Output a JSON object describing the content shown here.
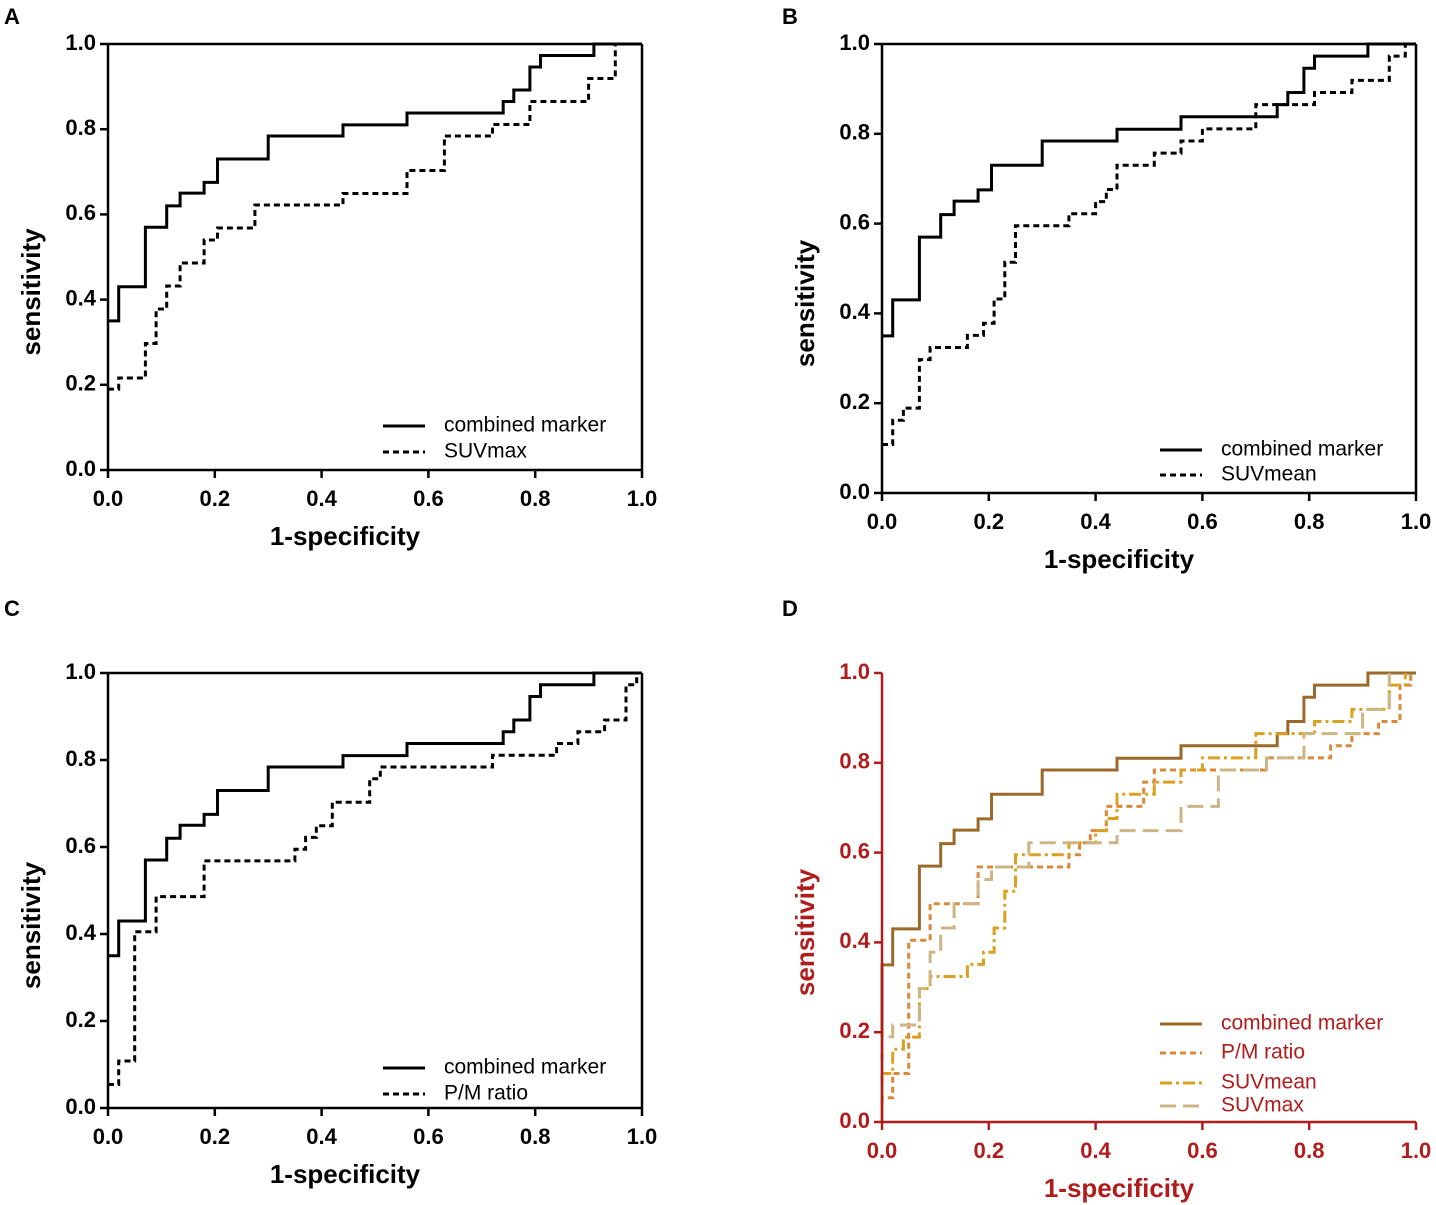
{
  "chart_data": [
    {
      "type": "line",
      "panel": "A",
      "xlabel": "1-specificity",
      "ylabel": "sensitivity",
      "frame": true,
      "axis_color": "#000000",
      "legend": "lower right",
      "xlim": [
        0,
        1
      ],
      "ylim": [
        0,
        1
      ],
      "xticks": [
        {
          "value": 0,
          "label": "0.0"
        },
        0.2,
        0.4,
        0.6,
        0.8,
        {
          "value": 1,
          "label": "1.0"
        }
      ],
      "yticks": [
        {
          "value": 0,
          "label": "0.0"
        },
        0.2,
        0.4,
        0.6,
        0.8,
        {
          "value": 1,
          "label": "1.0"
        }
      ],
      "series": [
        {
          "name": "combined marker",
          "color": "#000000",
          "linestyle": "solid",
          "x": [
            0,
            0.02,
            0.02,
            0.07,
            0.07,
            0.11,
            0.11,
            0.135,
            0.135,
            0.18,
            0.18,
            0.205,
            0.205,
            0.3,
            0.3,
            0.44,
            0.44,
            0.56,
            0.56,
            0.74,
            0.74,
            0.76,
            0.76,
            0.79,
            0.79,
            0.81,
            0.81,
            0.91,
            0.91,
            1
          ],
          "values": [
            0.35,
            0.35,
            0.43,
            0.43,
            0.57,
            0.57,
            0.62,
            0.62,
            0.65,
            0.65,
            0.675,
            0.675,
            0.73,
            0.73,
            0.784,
            0.784,
            0.81,
            0.81,
            0.838,
            0.838,
            0.865,
            0.865,
            0.892,
            0.892,
            0.946,
            0.946,
            0.973,
            0.973,
            1,
            1
          ]
        },
        {
          "name": "SUVmax",
          "color": "#000000",
          "linestyle": "dashed",
          "x": [
            0,
            0.02,
            0.02,
            0.07,
            0.07,
            0.09,
            0.09,
            0.11,
            0.11,
            0.135,
            0.135,
            0.18,
            0.18,
            0.205,
            0.205,
            0.275,
            0.275,
            0.44,
            0.44,
            0.56,
            0.56,
            0.63,
            0.63,
            0.72,
            0.72,
            0.79,
            0.79,
            0.9,
            0.9,
            0.95,
            0.95
          ],
          "values": [
            0.19,
            0.19,
            0.216,
            0.216,
            0.297,
            0.297,
            0.378,
            0.378,
            0.432,
            0.432,
            0.486,
            0.486,
            0.54,
            0.54,
            0.568,
            0.568,
            0.622,
            0.622,
            0.649,
            0.649,
            0.703,
            0.703,
            0.784,
            0.784,
            0.811,
            0.811,
            0.865,
            0.865,
            0.919,
            0.919,
            1
          ]
        }
      ]
    },
    {
      "type": "line",
      "panel": "B",
      "xlabel": "1-specificity",
      "ylabel": "sensitivity",
      "frame": true,
      "axis_color": "#000000",
      "legend": "lower right",
      "xlim": [
        0,
        1
      ],
      "ylim": [
        0,
        1
      ],
      "xticks": [
        {
          "value": 0,
          "label": "0.0"
        },
        0.2,
        0.4,
        0.6,
        0.8,
        {
          "value": 1,
          "label": "1.0"
        }
      ],
      "yticks": [
        {
          "value": 0,
          "label": "0.0"
        },
        0.2,
        0.4,
        0.6,
        0.8,
        {
          "value": 1,
          "label": "1.0"
        }
      ],
      "series": [
        {
          "name": "combined marker",
          "color": "#000000",
          "linestyle": "solid",
          "x": [
            0,
            0.02,
            0.02,
            0.07,
            0.07,
            0.11,
            0.11,
            0.135,
            0.135,
            0.18,
            0.18,
            0.205,
            0.205,
            0.3,
            0.3,
            0.44,
            0.44,
            0.56,
            0.56,
            0.74,
            0.74,
            0.76,
            0.76,
            0.79,
            0.79,
            0.81,
            0.81,
            0.91,
            0.91,
            1
          ],
          "values": [
            0.35,
            0.35,
            0.43,
            0.43,
            0.57,
            0.57,
            0.62,
            0.62,
            0.65,
            0.65,
            0.675,
            0.675,
            0.73,
            0.73,
            0.784,
            0.784,
            0.81,
            0.81,
            0.838,
            0.838,
            0.865,
            0.865,
            0.892,
            0.892,
            0.946,
            0.946,
            0.973,
            0.973,
            1,
            1
          ]
        },
        {
          "name": "SUVmean",
          "color": "#000000",
          "linestyle": "dashed",
          "x": [
            0,
            0.02,
            0.02,
            0.04,
            0.04,
            0.07,
            0.07,
            0.09,
            0.09,
            0.16,
            0.16,
            0.19,
            0.19,
            0.21,
            0.21,
            0.23,
            0.23,
            0.25,
            0.25,
            0.35,
            0.35,
            0.4,
            0.4,
            0.42,
            0.42,
            0.44,
            0.44,
            0.51,
            0.51,
            0.56,
            0.56,
            0.6,
            0.6,
            0.7,
            0.7,
            0.81,
            0.81,
            0.88,
            0.88,
            0.95,
            0.95,
            0.98,
            0.98
          ],
          "values": [
            0.108,
            0.108,
            0.162,
            0.162,
            0.189,
            0.189,
            0.297,
            0.297,
            0.324,
            0.324,
            0.351,
            0.351,
            0.378,
            0.378,
            0.432,
            0.432,
            0.514,
            0.514,
            0.595,
            0.595,
            0.622,
            0.622,
            0.649,
            0.649,
            0.676,
            0.676,
            0.73,
            0.73,
            0.757,
            0.757,
            0.784,
            0.784,
            0.811,
            0.811,
            0.865,
            0.865,
            0.892,
            0.892,
            0.919,
            0.919,
            0.973,
            0.973,
            1
          ]
        }
      ]
    },
    {
      "type": "line",
      "panel": "C",
      "xlabel": "1-specificity",
      "ylabel": "sensitivity",
      "frame": true,
      "axis_color": "#000000",
      "legend": "lower right",
      "xlim": [
        0,
        1
      ],
      "ylim": [
        0,
        1
      ],
      "xticks": [
        {
          "value": 0,
          "label": "0.0"
        },
        0.2,
        0.4,
        0.6,
        0.8,
        {
          "value": 1,
          "label": "1.0"
        }
      ],
      "yticks": [
        {
          "value": 0,
          "label": "0.0"
        },
        0.2,
        0.4,
        0.6,
        0.8,
        {
          "value": 1,
          "label": "1.0"
        }
      ],
      "series": [
        {
          "name": "combined marker",
          "color": "#000000",
          "linestyle": "solid",
          "x": [
            0,
            0.02,
            0.02,
            0.07,
            0.07,
            0.11,
            0.11,
            0.135,
            0.135,
            0.18,
            0.18,
            0.205,
            0.205,
            0.3,
            0.3,
            0.44,
            0.44,
            0.56,
            0.56,
            0.74,
            0.74,
            0.76,
            0.76,
            0.79,
            0.79,
            0.81,
            0.81,
            0.91,
            0.91,
            1
          ],
          "values": [
            0.35,
            0.35,
            0.43,
            0.43,
            0.57,
            0.57,
            0.62,
            0.62,
            0.65,
            0.65,
            0.675,
            0.675,
            0.73,
            0.73,
            0.784,
            0.784,
            0.81,
            0.81,
            0.838,
            0.838,
            0.865,
            0.865,
            0.892,
            0.892,
            0.946,
            0.946,
            0.973,
            0.973,
            1,
            1
          ]
        },
        {
          "name": "P/M ratio",
          "color": "#000000",
          "linestyle": "dashed",
          "x": [
            0,
            0.02,
            0.02,
            0.05,
            0.05,
            0.09,
            0.09,
            0.18,
            0.18,
            0.35,
            0.35,
            0.37,
            0.37,
            0.39,
            0.39,
            0.42,
            0.42,
            0.49,
            0.49,
            0.51,
            0.51,
            0.72,
            0.72,
            0.84,
            0.84,
            0.88,
            0.88,
            0.93,
            0.93,
            0.97,
            0.97,
            0.99,
            0.99
          ],
          "values": [
            0.054,
            0.054,
            0.108,
            0.108,
            0.405,
            0.405,
            0.486,
            0.486,
            0.568,
            0.568,
            0.595,
            0.595,
            0.622,
            0.622,
            0.649,
            0.649,
            0.703,
            0.703,
            0.757,
            0.757,
            0.784,
            0.784,
            0.811,
            0.811,
            0.838,
            0.838,
            0.865,
            0.865,
            0.892,
            0.892,
            0.973,
            0.973,
            1
          ]
        }
      ]
    },
    {
      "type": "line",
      "panel": "D",
      "xlabel": "1-specificity",
      "ylabel": "sensitivity",
      "frame": false,
      "axis_color": "#b01c1c",
      "legend": "lower right",
      "xlim": [
        0,
        1
      ],
      "ylim": [
        0,
        1
      ],
      "xticks": [
        {
          "value": 0,
          "label": "0.0"
        },
        0.2,
        0.4,
        0.6,
        0.8,
        {
          "value": 1,
          "label": "1.0"
        }
      ],
      "yticks": [
        {
          "value": 0,
          "label": "0.0"
        },
        0.2,
        0.4,
        0.6,
        0.8,
        {
          "value": 1,
          "label": "1.0"
        }
      ],
      "series": [
        {
          "name": "combined marker",
          "color": "#9b6a2a",
          "linestyle": "solid",
          "x": [
            0,
            0,
            0.02,
            0.02,
            0.07,
            0.07,
            0.11,
            0.11,
            0.135,
            0.135,
            0.18,
            0.18,
            0.205,
            0.205,
            0.3,
            0.3,
            0.44,
            0.44,
            0.56,
            0.56,
            0.74,
            0.74,
            0.76,
            0.76,
            0.79,
            0.79,
            0.81,
            0.81,
            0.91,
            0.91,
            1
          ],
          "values": [
            0,
            0.35,
            0.35,
            0.43,
            0.43,
            0.57,
            0.57,
            0.62,
            0.62,
            0.65,
            0.65,
            0.675,
            0.675,
            0.73,
            0.73,
            0.784,
            0.784,
            0.81,
            0.81,
            0.838,
            0.838,
            0.865,
            0.865,
            0.892,
            0.892,
            0.946,
            0.946,
            0.973,
            0.973,
            1,
            1
          ]
        },
        {
          "name": "P/M ratio",
          "color": "#d9893a",
          "linestyle": "dashed",
          "x": [
            0,
            0,
            0.02,
            0.02,
            0.05,
            0.05,
            0.09,
            0.09,
            0.18,
            0.18,
            0.35,
            0.35,
            0.37,
            0.37,
            0.39,
            0.39,
            0.42,
            0.42,
            0.49,
            0.49,
            0.51,
            0.51,
            0.72,
            0.72,
            0.84,
            0.84,
            0.88,
            0.88,
            0.93,
            0.93,
            0.97,
            0.97,
            0.99,
            0.99
          ],
          "values": [
            0,
            0.054,
            0.054,
            0.108,
            0.108,
            0.405,
            0.405,
            0.486,
            0.486,
            0.568,
            0.568,
            0.595,
            0.595,
            0.622,
            0.622,
            0.649,
            0.649,
            0.703,
            0.703,
            0.757,
            0.757,
            0.784,
            0.784,
            0.811,
            0.811,
            0.838,
            0.838,
            0.865,
            0.865,
            0.892,
            0.892,
            0.973,
            0.973,
            1
          ]
        },
        {
          "name": "SUVmean",
          "color": "#dba020",
          "linestyle": "dashdot",
          "x": [
            0,
            0,
            0.02,
            0.02,
            0.04,
            0.04,
            0.07,
            0.07,
            0.09,
            0.09,
            0.16,
            0.16,
            0.19,
            0.19,
            0.21,
            0.21,
            0.23,
            0.23,
            0.25,
            0.25,
            0.35,
            0.35,
            0.4,
            0.4,
            0.42,
            0.42,
            0.44,
            0.44,
            0.51,
            0.51,
            0.56,
            0.56,
            0.6,
            0.6,
            0.7,
            0.7,
            0.81,
            0.81,
            0.88,
            0.88,
            0.95,
            0.95,
            0.98,
            0.98
          ],
          "values": [
            0,
            0.108,
            0.108,
            0.162,
            0.162,
            0.189,
            0.189,
            0.297,
            0.297,
            0.324,
            0.324,
            0.351,
            0.351,
            0.378,
            0.378,
            0.432,
            0.432,
            0.514,
            0.514,
            0.595,
            0.595,
            0.622,
            0.622,
            0.649,
            0.649,
            0.676,
            0.676,
            0.73,
            0.73,
            0.757,
            0.757,
            0.784,
            0.784,
            0.811,
            0.811,
            0.865,
            0.865,
            0.892,
            0.892,
            0.919,
            0.919,
            0.973,
            0.973,
            1
          ]
        },
        {
          "name": "SUVmax",
          "color": "#cdb585",
          "linestyle": "longdash",
          "x": [
            0,
            0,
            0.02,
            0.02,
            0.07,
            0.07,
            0.09,
            0.09,
            0.11,
            0.11,
            0.135,
            0.135,
            0.18,
            0.18,
            0.205,
            0.205,
            0.275,
            0.275,
            0.44,
            0.44,
            0.56,
            0.56,
            0.63,
            0.63,
            0.72,
            0.72,
            0.79,
            0.79,
            0.9,
            0.9,
            0.95,
            0.95
          ],
          "values": [
            0,
            0.19,
            0.19,
            0.216,
            0.216,
            0.297,
            0.297,
            0.378,
            0.378,
            0.432,
            0.432,
            0.486,
            0.486,
            0.54,
            0.54,
            0.568,
            0.568,
            0.622,
            0.622,
            0.649,
            0.649,
            0.703,
            0.703,
            0.784,
            0.784,
            0.811,
            0.811,
            0.865,
            0.865,
            0.919,
            0.919,
            1
          ]
        }
      ]
    }
  ]
}
